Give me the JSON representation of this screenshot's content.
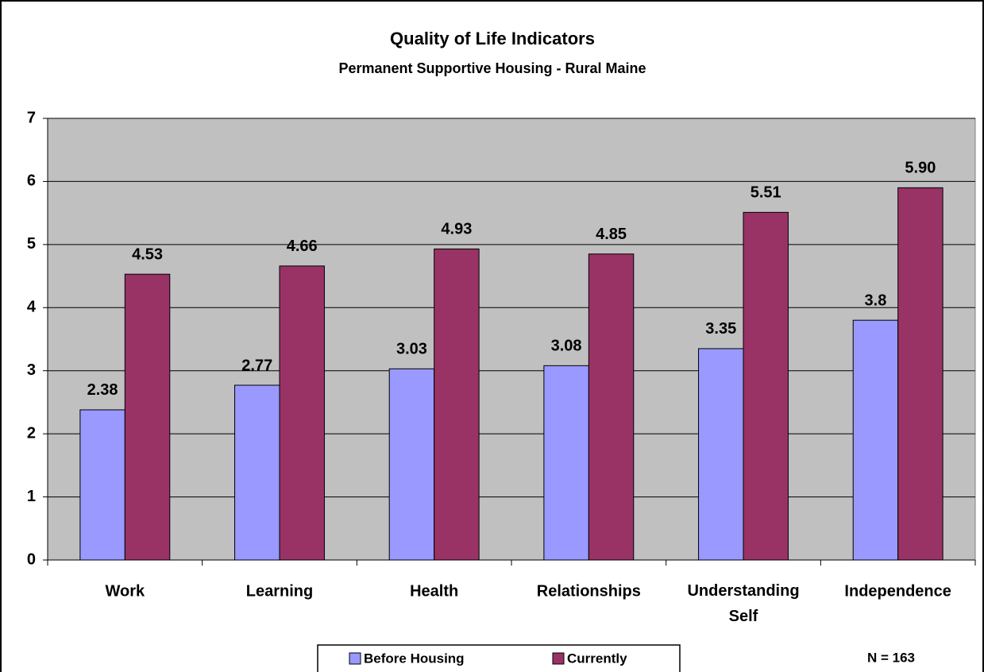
{
  "chart_data": {
    "type": "bar",
    "title": "Quality of Life Indicators",
    "subtitle": "Permanent Supportive Housing - Rural Maine",
    "categories": [
      "Work",
      "Learning",
      "Health",
      "Relationships",
      "Understanding Self",
      "Independence"
    ],
    "series": [
      {
        "name": "Before Housing",
        "color": "#9999ff",
        "values": [
          2.38,
          2.77,
          3.03,
          3.08,
          3.35,
          3.8
        ]
      },
      {
        "name": "Currently",
        "color": "#993366",
        "values": [
          4.53,
          4.66,
          4.93,
          4.85,
          5.51,
          5.9
        ],
        "value_labels": [
          "4.53",
          "4.66",
          "4.93",
          "4.85",
          "5.51",
          "5.90"
        ]
      }
    ],
    "ylim": [
      0,
      7
    ],
    "yticks": [
      0,
      1,
      2,
      3,
      4,
      5,
      6,
      7
    ],
    "grid": true,
    "annotation": "N = 163"
  }
}
